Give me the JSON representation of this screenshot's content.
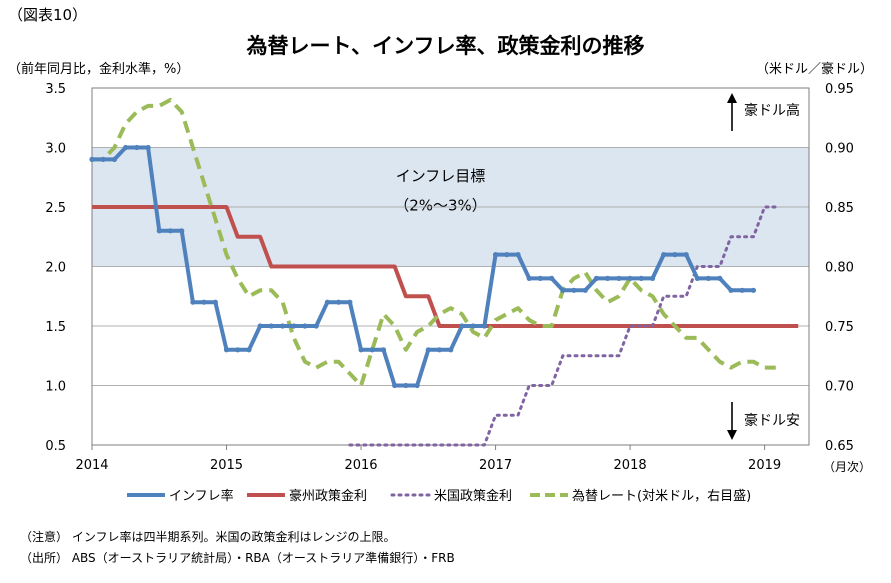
{
  "figure_label": "（図表10）",
  "chart_data": {
    "type": "line",
    "title": "為替レート、インフレ率、政策金利の推移",
    "ylabel": "（前年同月比，金利水準，%）",
    "ylabel_right": "（米ドル／豪ドル）",
    "xunit": "（月次）",
    "ylim": [
      0.5,
      3.5
    ],
    "ylim_right": [
      0.65,
      0.95
    ],
    "yticks": [
      "3.5",
      "3.0",
      "2.5",
      "2.0",
      "1.5",
      "1.0",
      "0.5"
    ],
    "yticks_right": [
      "0.95",
      "0.90",
      "0.85",
      "0.80",
      "0.75",
      "0.70",
      "0.65"
    ],
    "xticks": [
      "2014",
      "2015",
      "2016",
      "2017",
      "2018",
      "2019"
    ],
    "band": {
      "from": 2.0,
      "to": 3.0,
      "label_line1": "インフレ目標",
      "label_line2": "（2%～3%）",
      "color": "#dce6f1"
    },
    "arrow_up_label": "豪ドル高",
    "arrow_down_label": "豪ドル安",
    "grid": true,
    "legend_position": "bottom",
    "series": [
      {
        "name": "インフレ率",
        "axis": "left",
        "style": "solid",
        "color": "#4f81bd",
        "marker": true,
        "x": [
          2014.0,
          2014.083,
          2014.167,
          2014.25,
          2014.333,
          2014.417,
          2014.5,
          2014.583,
          2014.667,
          2014.75,
          2014.833,
          2014.917,
          2015.0,
          2015.083,
          2015.167,
          2015.25,
          2015.333,
          2015.417,
          2015.5,
          2015.583,
          2015.667,
          2015.75,
          2015.833,
          2015.917,
          2016.0,
          2016.083,
          2016.167,
          2016.25,
          2016.333,
          2016.417,
          2016.5,
          2016.583,
          2016.667,
          2016.75,
          2016.833,
          2016.917,
          2017.0,
          2017.083,
          2017.167,
          2017.25,
          2017.333,
          2017.417,
          2017.5,
          2017.583,
          2017.667,
          2017.75,
          2017.833,
          2017.917,
          2018.0,
          2018.083,
          2018.167,
          2018.25,
          2018.333,
          2018.417,
          2018.5,
          2018.583,
          2018.667,
          2018.75,
          2018.833,
          2018.917
        ],
        "y": [
          2.9,
          2.9,
          2.9,
          3.0,
          3.0,
          3.0,
          2.3,
          2.3,
          2.3,
          1.7,
          1.7,
          1.7,
          1.3,
          1.3,
          1.3,
          1.5,
          1.5,
          1.5,
          1.5,
          1.5,
          1.5,
          1.7,
          1.7,
          1.7,
          1.3,
          1.3,
          1.3,
          1.0,
          1.0,
          1.0,
          1.3,
          1.3,
          1.3,
          1.5,
          1.5,
          1.5,
          2.1,
          2.1,
          2.1,
          1.9,
          1.9,
          1.9,
          1.8,
          1.8,
          1.8,
          1.9,
          1.9,
          1.9,
          1.9,
          1.9,
          1.9,
          2.1,
          2.1,
          2.1,
          1.9,
          1.9,
          1.9,
          1.8,
          1.8,
          1.8
        ]
      },
      {
        "name": "豪州政策金利",
        "axis": "left",
        "style": "solid",
        "color": "#c0504d",
        "marker": false,
        "x": [
          2014.0,
          2015.0,
          2015.083,
          2015.25,
          2015.333,
          2016.25,
          2016.333,
          2016.5,
          2016.583,
          2019.25
        ],
        "y": [
          2.5,
          2.5,
          2.25,
          2.25,
          2.0,
          2.0,
          1.75,
          1.75,
          1.5,
          1.5
        ]
      },
      {
        "name": "米国政策金利",
        "axis": "left",
        "style": "dotted",
        "color": "#8064a2",
        "marker": false,
        "x": [
          2015.917,
          2016.917,
          2017.0,
          2017.167,
          2017.25,
          2017.417,
          2017.5,
          2017.917,
          2018.0,
          2018.167,
          2018.25,
          2018.417,
          2018.5,
          2018.667,
          2018.75,
          2018.917,
          2019.0,
          2019.083
        ],
        "y": [
          0.5,
          0.5,
          0.75,
          0.75,
          1.0,
          1.0,
          1.25,
          1.25,
          1.5,
          1.5,
          1.75,
          1.75,
          2.0,
          2.0,
          2.25,
          2.25,
          2.5,
          2.5
        ]
      },
      {
        "name": "為替レート(対米ドル，右目盛)",
        "axis": "right",
        "style": "dashed",
        "color": "#9bbb59",
        "marker": false,
        "x": [
          2014.0,
          2014.083,
          2014.167,
          2014.25,
          2014.333,
          2014.417,
          2014.5,
          2014.583,
          2014.667,
          2014.75,
          2014.833,
          2014.917,
          2015.0,
          2015.083,
          2015.167,
          2015.25,
          2015.333,
          2015.417,
          2015.5,
          2015.583,
          2015.667,
          2015.75,
          2015.833,
          2015.917,
          2016.0,
          2016.083,
          2016.167,
          2016.25,
          2016.333,
          2016.417,
          2016.5,
          2016.583,
          2016.667,
          2016.75,
          2016.833,
          2016.917,
          2017.0,
          2017.083,
          2017.167,
          2017.25,
          2017.333,
          2017.417,
          2017.5,
          2017.583,
          2017.667,
          2017.75,
          2017.833,
          2017.917,
          2018.0,
          2018.083,
          2018.167,
          2018.25,
          2018.333,
          2018.417,
          2018.5,
          2018.583,
          2018.667,
          2018.75,
          2018.833,
          2018.917,
          2019.0,
          2019.083
        ],
        "y": [
          0.89,
          0.89,
          0.9,
          0.92,
          0.93,
          0.935,
          0.935,
          0.94,
          0.93,
          0.9,
          0.87,
          0.84,
          0.81,
          0.79,
          0.775,
          0.78,
          0.78,
          0.77,
          0.74,
          0.72,
          0.715,
          0.72,
          0.72,
          0.71,
          0.7,
          0.73,
          0.76,
          0.75,
          0.73,
          0.745,
          0.75,
          0.76,
          0.765,
          0.76,
          0.745,
          0.74,
          0.755,
          0.76,
          0.765,
          0.755,
          0.75,
          0.75,
          0.78,
          0.79,
          0.795,
          0.78,
          0.77,
          0.775,
          0.79,
          0.78,
          0.775,
          0.76,
          0.75,
          0.74,
          0.74,
          0.73,
          0.72,
          0.715,
          0.72,
          0.72,
          0.715,
          0.715
        ]
      }
    ]
  },
  "notes": {
    "note_line": "（注意） インフレ率は四半期系列。米国の政策金利はレンジの上限。",
    "source_line": "（出所） ABS（オーストラリア統計局）・RBA（オーストラリア準備銀行）・FRB"
  }
}
